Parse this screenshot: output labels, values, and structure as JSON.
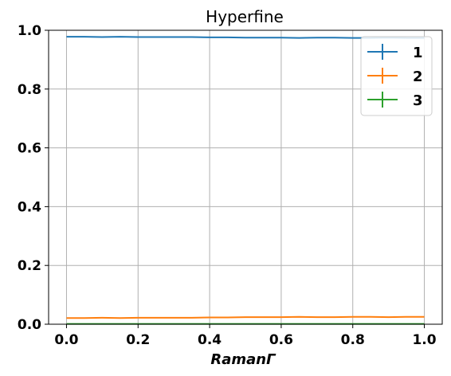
{
  "chart_data": {
    "type": "line",
    "title": "Hyperfine",
    "xlabel": "RamanΓ",
    "ylabel": "",
    "xlim": [
      -0.05,
      1.05
    ],
    "ylim": [
      0.0,
      1.0
    ],
    "xticks": [
      "0.0",
      "0.2",
      "0.4",
      "0.6",
      "0.8",
      "1.0"
    ],
    "xtick_values": [
      0.0,
      0.2,
      0.4,
      0.6,
      0.8,
      1.0
    ],
    "yticks": [
      "0.0",
      "0.2",
      "0.4",
      "0.6",
      "0.8",
      "1.0"
    ],
    "ytick_values": [
      0.0,
      0.2,
      0.4,
      0.6,
      0.8,
      1.0
    ],
    "grid": true,
    "legend_position": "top-right",
    "x": [
      0.0,
      0.05,
      0.1,
      0.15,
      0.2,
      0.25,
      0.3,
      0.35,
      0.4,
      0.45,
      0.5,
      0.55,
      0.6,
      0.65,
      0.7,
      0.75,
      0.8,
      0.85,
      0.9,
      0.95,
      1.0
    ],
    "series": [
      {
        "name": "1",
        "color": "#1f77b4",
        "values": [
          0.978,
          0.978,
          0.977,
          0.978,
          0.977,
          0.977,
          0.977,
          0.977,
          0.976,
          0.976,
          0.975,
          0.975,
          0.975,
          0.974,
          0.975,
          0.975,
          0.974,
          0.974,
          0.975,
          0.974,
          0.974
        ]
      },
      {
        "name": "2",
        "color": "#ff7f0e",
        "values": [
          0.021,
          0.021,
          0.022,
          0.021,
          0.022,
          0.022,
          0.022,
          0.022,
          0.023,
          0.023,
          0.024,
          0.024,
          0.024,
          0.025,
          0.024,
          0.024,
          0.025,
          0.025,
          0.024,
          0.025,
          0.025
        ]
      },
      {
        "name": "3",
        "color": "#2ca02c",
        "values": [
          0.001,
          0.001,
          0.001,
          0.001,
          0.001,
          0.001,
          0.001,
          0.001,
          0.001,
          0.001,
          0.001,
          0.001,
          0.001,
          0.001,
          0.001,
          0.001,
          0.001,
          0.001,
          0.001,
          0.001,
          0.001
        ]
      }
    ]
  }
}
